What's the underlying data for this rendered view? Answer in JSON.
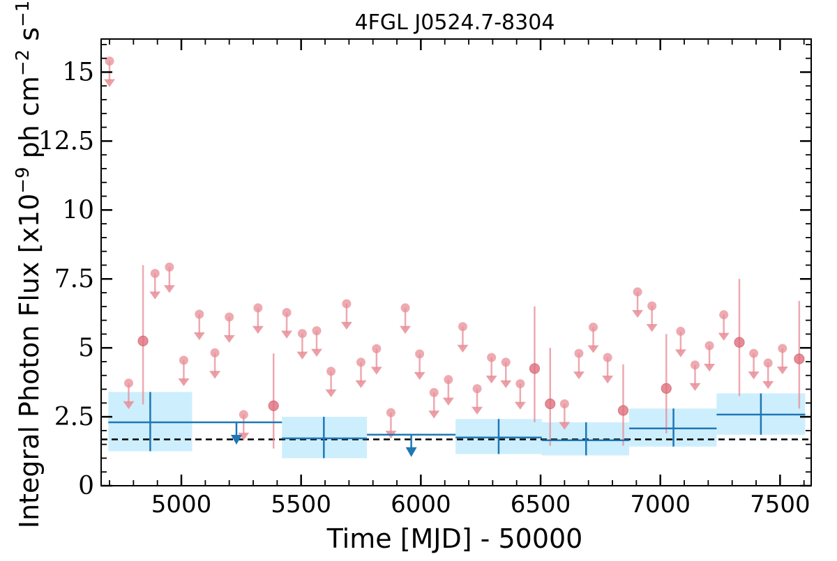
{
  "chart_data": {
    "type": "scatter",
    "title": "4FGL J0524.7-8304",
    "xlabel": "Time [MJD] - 50000",
    "ylabel": "Integral Photon Flux [x10",
    "ylabel_exp": "−9",
    "ylabel_unit": " ph cm",
    "ylabel_exp2": "−2",
    "ylabel_unit2": " s",
    "ylabel_exp3": "−1",
    "ylabel_end": "]",
    "xlim": [
      4665,
      7630
    ],
    "ylim": [
      0,
      16.2
    ],
    "x_ticks": [
      {
        "value": 5000,
        "label": "5000"
      },
      {
        "value": 5500,
        "label": "5500"
      },
      {
        "value": 6000,
        "label": "6000"
      },
      {
        "value": 6500,
        "label": "6500"
      },
      {
        "value": 7000,
        "label": "7000"
      },
      {
        "value": 7500,
        "label": "7500"
      }
    ],
    "y_ticks": [
      {
        "value": 0,
        "label": "0"
      },
      {
        "value": 2.5,
        "label": "2.5"
      },
      {
        "value": 5,
        "label": "5"
      },
      {
        "value": 7.5,
        "label": "7.5"
      },
      {
        "value": 10,
        "label": "10"
      },
      {
        "value": 12.5,
        "label": "12.5"
      },
      {
        "value": 15,
        "label": "15"
      }
    ],
    "reference_line": {
      "value": 1.68,
      "style": "dashed",
      "color": "#000000"
    },
    "colors": {
      "short_bins": "#e88d97",
      "long_bins": "#1f77b4",
      "band_fill": "#cdeefd"
    },
    "short_bin_upper_limits": [
      {
        "x": 4700,
        "y": 15.4
      },
      {
        "x": 4780,
        "y": 3.72
      },
      {
        "x": 4890,
        "y": 7.7
      },
      {
        "x": 4950,
        "y": 7.93
      },
      {
        "x": 5010,
        "y": 4.55
      },
      {
        "x": 5075,
        "y": 6.22
      },
      {
        "x": 5140,
        "y": 4.82
      },
      {
        "x": 5200,
        "y": 6.12
      },
      {
        "x": 5260,
        "y": 2.58
      },
      {
        "x": 5320,
        "y": 6.45
      },
      {
        "x": 5440,
        "y": 6.28
      },
      {
        "x": 5505,
        "y": 5.52
      },
      {
        "x": 5565,
        "y": 5.62
      },
      {
        "x": 5625,
        "y": 4.15
      },
      {
        "x": 5690,
        "y": 6.6
      },
      {
        "x": 5750,
        "y": 4.48
      },
      {
        "x": 5815,
        "y": 4.97
      },
      {
        "x": 5875,
        "y": 2.65
      },
      {
        "x": 5935,
        "y": 6.45
      },
      {
        "x": 5995,
        "y": 4.78
      },
      {
        "x": 6055,
        "y": 3.38
      },
      {
        "x": 6115,
        "y": 3.85
      },
      {
        "x": 6175,
        "y": 5.77
      },
      {
        "x": 6235,
        "y": 3.52
      },
      {
        "x": 6295,
        "y": 4.65
      },
      {
        "x": 6355,
        "y": 4.48
      },
      {
        "x": 6415,
        "y": 3.7
      },
      {
        "x": 6600,
        "y": 2.97
      },
      {
        "x": 6660,
        "y": 4.8
      },
      {
        "x": 6720,
        "y": 5.75
      },
      {
        "x": 6780,
        "y": 4.65
      },
      {
        "x": 6905,
        "y": 7.03
      },
      {
        "x": 6965,
        "y": 6.52
      },
      {
        "x": 7085,
        "y": 5.6
      },
      {
        "x": 7145,
        "y": 4.38
      },
      {
        "x": 7205,
        "y": 5.08
      },
      {
        "x": 7265,
        "y": 6.2
      },
      {
        "x": 7390,
        "y": 4.8
      },
      {
        "x": 7450,
        "y": 4.45
      },
      {
        "x": 7510,
        "y": 4.98
      }
    ],
    "short_bin_detections": [
      {
        "x": 4840,
        "y": 5.25,
        "ylo": 2.95,
        "yhi": 8.0
      },
      {
        "x": 5385,
        "y": 2.9,
        "ylo": 1.35,
        "yhi": 4.8
      },
      {
        "x": 6475,
        "y": 4.25,
        "ylo": 2.3,
        "yhi": 6.5
      },
      {
        "x": 6540,
        "y": 2.97,
        "ylo": 1.45,
        "yhi": 5.0
      },
      {
        "x": 6845,
        "y": 2.73,
        "ylo": 1.45,
        "yhi": 4.4
      },
      {
        "x": 7025,
        "y": 3.53,
        "ylo": 1.9,
        "yhi": 5.5
      },
      {
        "x": 7330,
        "y": 5.2,
        "ylo": 3.25,
        "yhi": 7.5
      },
      {
        "x": 7580,
        "y": 4.6,
        "ylo": 2.8,
        "yhi": 6.7
      }
    ],
    "long_bin_detections": [
      {
        "x": 4870,
        "xlo": 4695,
        "xhi": 5045,
        "y": 2.3,
        "ylo": 1.25,
        "yhi": 3.4
      },
      {
        "x": 5595,
        "xlo": 5420,
        "xhi": 5775,
        "y": 1.72,
        "ylo": 1.0,
        "yhi": 2.5
      },
      {
        "x": 6325,
        "xlo": 6145,
        "xhi": 6505,
        "y": 1.75,
        "ylo": 1.15,
        "yhi": 2.42
      },
      {
        "x": 6690,
        "xlo": 6505,
        "xhi": 6870,
        "y": 1.65,
        "ylo": 1.1,
        "yhi": 2.3
      },
      {
        "x": 7055,
        "xlo": 6870,
        "xhi": 7235,
        "y": 2.08,
        "ylo": 1.42,
        "yhi": 2.8
      },
      {
        "x": 7420,
        "xlo": 7235,
        "xhi": 7605,
        "y": 2.58,
        "ylo": 1.85,
        "yhi": 3.35
      }
    ],
    "long_bin_upper_limits": [
      {
        "x": 5230,
        "xlo": 5045,
        "xhi": 5420,
        "y": 2.3
      },
      {
        "x": 5960,
        "xlo": 5775,
        "xhi": 6145,
        "y": 1.85
      }
    ]
  }
}
